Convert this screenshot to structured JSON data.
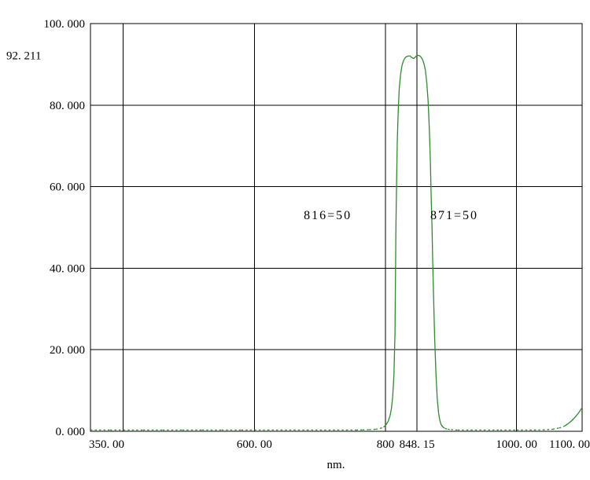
{
  "chart_data": {
    "type": "line",
    "xlabel": "nm.",
    "ylabel": "",
    "xlim": [
      350,
      1100
    ],
    "ylim": [
      0,
      100
    ],
    "grid": true,
    "x_gridlines": [
      400,
      600,
      800,
      1000
    ],
    "y_gridlines": [
      20,
      40,
      60,
      80
    ],
    "marker_line_x": 848.15,
    "peak": {
      "wavelength": 848.15,
      "transmission": 92.211
    },
    "x_ticks": [
      {
        "value": 350,
        "label": "350. 00"
      },
      {
        "value": 600,
        "label": "600. 00"
      },
      {
        "value": 800,
        "label": "800"
      },
      {
        "value": 848.15,
        "label": "848. 15"
      },
      {
        "value": 1000,
        "label": "1000. 00"
      },
      {
        "value": 1100,
        "label": "1100. 00"
      }
    ],
    "y_ticks": [
      {
        "value": 0,
        "label": "0. 000"
      },
      {
        "value": 20,
        "label": "20. 000"
      },
      {
        "value": 40,
        "label": "40. 000"
      },
      {
        "value": 60,
        "label": "60. 000"
      },
      {
        "value": 80,
        "label": "80. 000"
      },
      {
        "value": 92.211,
        "label": "92. 211"
      },
      {
        "value": 100,
        "label": "100. 000"
      }
    ],
    "annotations": [
      {
        "text": "816=50",
        "x": 712,
        "y": 52
      },
      {
        "text": "871=50",
        "x": 905,
        "y": 52
      }
    ],
    "colors": {
      "curve": "#2e8b2e",
      "grid": "#000000",
      "background": "#ffffff",
      "text": "#000000"
    },
    "series": [
      {
        "name": "transmission",
        "points": [
          [
            350,
            0.3
          ],
          [
            380,
            0.3
          ],
          [
            400,
            0.3
          ],
          [
            430,
            0.3
          ],
          [
            460,
            0.3
          ],
          [
            490,
            0.3
          ],
          [
            520,
            0.3
          ],
          [
            550,
            0.3
          ],
          [
            580,
            0.3
          ],
          [
            600,
            0.3
          ],
          [
            620,
            0.3
          ],
          [
            640,
            0.3
          ],
          [
            660,
            0.3
          ],
          [
            680,
            0.3
          ],
          [
            700,
            0.3
          ],
          [
            720,
            0.3
          ],
          [
            740,
            0.3
          ],
          [
            755,
            0.3
          ],
          [
            765,
            0.35
          ],
          [
            775,
            0.4
          ],
          [
            785,
            0.5
          ],
          [
            792,
            0.7
          ],
          [
            797,
            1.0
          ],
          [
            801,
            1.6
          ],
          [
            804,
            2.4
          ],
          [
            807,
            3.8
          ],
          [
            809,
            5.5
          ],
          [
            811,
            8.5
          ],
          [
            813,
            14
          ],
          [
            814.5,
            24
          ],
          [
            816,
            50
          ],
          [
            817,
            62
          ],
          [
            818,
            71
          ],
          [
            819.5,
            79
          ],
          [
            821,
            84
          ],
          [
            823,
            87.5
          ],
          [
            825,
            89.5
          ],
          [
            827,
            90.7
          ],
          [
            829,
            91.4
          ],
          [
            831,
            91.8
          ],
          [
            834,
            92.0
          ],
          [
            837,
            92.1
          ],
          [
            840,
            91.7
          ],
          [
            843,
            91.4
          ],
          [
            845.5,
            91.8
          ],
          [
            848.15,
            92.211
          ],
          [
            850.5,
            92.2
          ],
          [
            853,
            92.0
          ],
          [
            855,
            91.6
          ],
          [
            857,
            91.0
          ],
          [
            859,
            90.0
          ],
          [
            861,
            88.5
          ],
          [
            863,
            85.5
          ],
          [
            865,
            81
          ],
          [
            867,
            74
          ],
          [
            868.5,
            66
          ],
          [
            870,
            56
          ],
          [
            871,
            50
          ],
          [
            872,
            42
          ],
          [
            873.5,
            32
          ],
          [
            875,
            23
          ],
          [
            877,
            14
          ],
          [
            879,
            8
          ],
          [
            881,
            4.5
          ],
          [
            883,
            2.6
          ],
          [
            885,
            1.6
          ],
          [
            888,
            1.0
          ],
          [
            891,
            0.7
          ],
          [
            895,
            0.5
          ],
          [
            900,
            0.4
          ],
          [
            910,
            0.3
          ],
          [
            930,
            0.3
          ],
          [
            950,
            0.3
          ],
          [
            975,
            0.3
          ],
          [
            1000,
            0.3
          ],
          [
            1020,
            0.3
          ],
          [
            1040,
            0.35
          ],
          [
            1055,
            0.5
          ],
          [
            1065,
            0.8
          ],
          [
            1072,
            1.2
          ],
          [
            1078,
            1.8
          ],
          [
            1084,
            2.6
          ],
          [
            1090,
            3.6
          ],
          [
            1095,
            4.6
          ],
          [
            1100,
            5.8
          ]
        ]
      }
    ]
  }
}
